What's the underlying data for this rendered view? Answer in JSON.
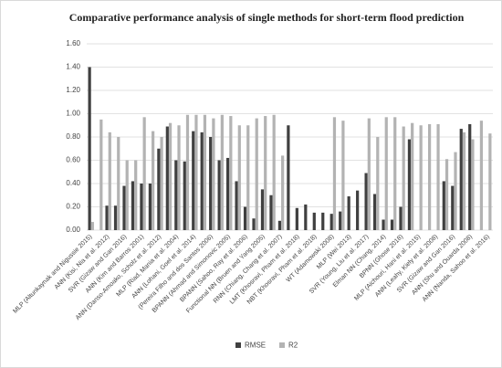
{
  "chart_data": {
    "type": "bar",
    "title": "Comparative performance analysis of single methods for short-term flood prediction",
    "categories": [
      "MLP (Altunkaynak and Nigussie 2015)",
      null,
      "ANN (Kisi, Nia et al. 2012)",
      null,
      "SVR (Gizaw and Gan 2016)",
      null,
      "ANN (Kim and Barros 2001)",
      null,
      "ANN (Danso-Amoako, Scholz et al. 2012)",
      null,
      "MLP (Riad, Mania et al. 2004)",
      null,
      "ANN (Lohani, Goel et al. 2014)",
      null,
      "(Pereira Filho and dos Santos 2006)",
      null,
      "BPANN (Ahmad and Simonovic 2005)",
      null,
      "BPANN (Sahoo, Ray et al. 2006)",
      null,
      "Functional NN (Bruen and Yang 2005)",
      null,
      "RNN (Chiang, Chang et al. 2007)",
      null,
      "LMT (Khosravi, Pham et al. 2018)",
      null,
      "NBT (Khosravi, Pham et al. 2018)",
      null,
      "WT (Adamowski 2008)",
      null,
      "MLP (Wei 2013)",
      null,
      "SVR (Young, Liu et al. 2017)",
      null,
      "Elman NN (Chang, 2014)",
      null,
      "BPNN (Ghose 2018)",
      null,
      "MLP (Aichouri, Hani et al. 2015)",
      null,
      "ANN (Leahy, Kiely et al. 2008)",
      null,
      "SVR (Gizaw and Gan 2016)",
      null,
      "ANN (Shu and Ouarda 2008)",
      null,
      "ANN (Nanda, Sahoo et al. 2016)"
    ],
    "series": [
      {
        "name": "RMSE",
        "color": "#404040",
        "values": [
          1.4,
          null,
          0.21,
          0.21,
          0.38,
          0.42,
          0.4,
          0.4,
          0.7,
          0.89,
          0.6,
          0.59,
          0.85,
          0.84,
          0.8,
          0.6,
          0.62,
          0.42,
          0.2,
          0.1,
          0.35,
          0.3,
          0.08,
          0.9,
          0.19,
          0.22,
          0.15,
          0.15,
          0.14,
          0.16,
          0.29,
          0.34,
          0.49,
          0.31,
          0.09,
          0.09,
          0.2,
          0.78,
          null,
          null,
          null,
          0.42,
          0.38,
          0.87,
          0.91,
          null,
          null
        ]
      },
      {
        "name": "R2",
        "color": "#b3b3b3",
        "values": [
          0.07,
          0.95,
          0.84,
          0.8,
          0.6,
          0.6,
          0.97,
          0.85,
          0.8,
          0.92,
          0.9,
          0.99,
          0.99,
          0.99,
          0.96,
          0.99,
          0.98,
          0.9,
          0.9,
          0.96,
          0.98,
          0.99,
          0.64,
          null,
          null,
          null,
          null,
          null,
          0.97,
          0.94,
          null,
          null,
          0.96,
          0.8,
          0.97,
          0.97,
          0.89,
          0.92,
          0.9,
          0.91,
          0.91,
          0.61,
          0.67,
          0.84,
          0.78,
          0.94,
          0.83
        ]
      }
    ],
    "ylim": [
      0,
      1.6
    ],
    "yticks": [
      {
        "value": 0,
        "label": "0.00"
      },
      {
        "value": 0.2,
        "label": "0.20"
      },
      {
        "value": 0.4,
        "label": "0.40"
      },
      {
        "value": 0.6,
        "label": "0.60"
      },
      {
        "value": 0.8,
        "label": "0.80"
      },
      {
        "value": 1.0,
        "label": "1.00"
      },
      {
        "value": 1.2,
        "label": "1.20"
      },
      {
        "value": 1.4,
        "label": "1.40"
      },
      {
        "value": 1.6,
        "label": "1.60"
      }
    ],
    "grid": true,
    "legend": "bottom"
  }
}
